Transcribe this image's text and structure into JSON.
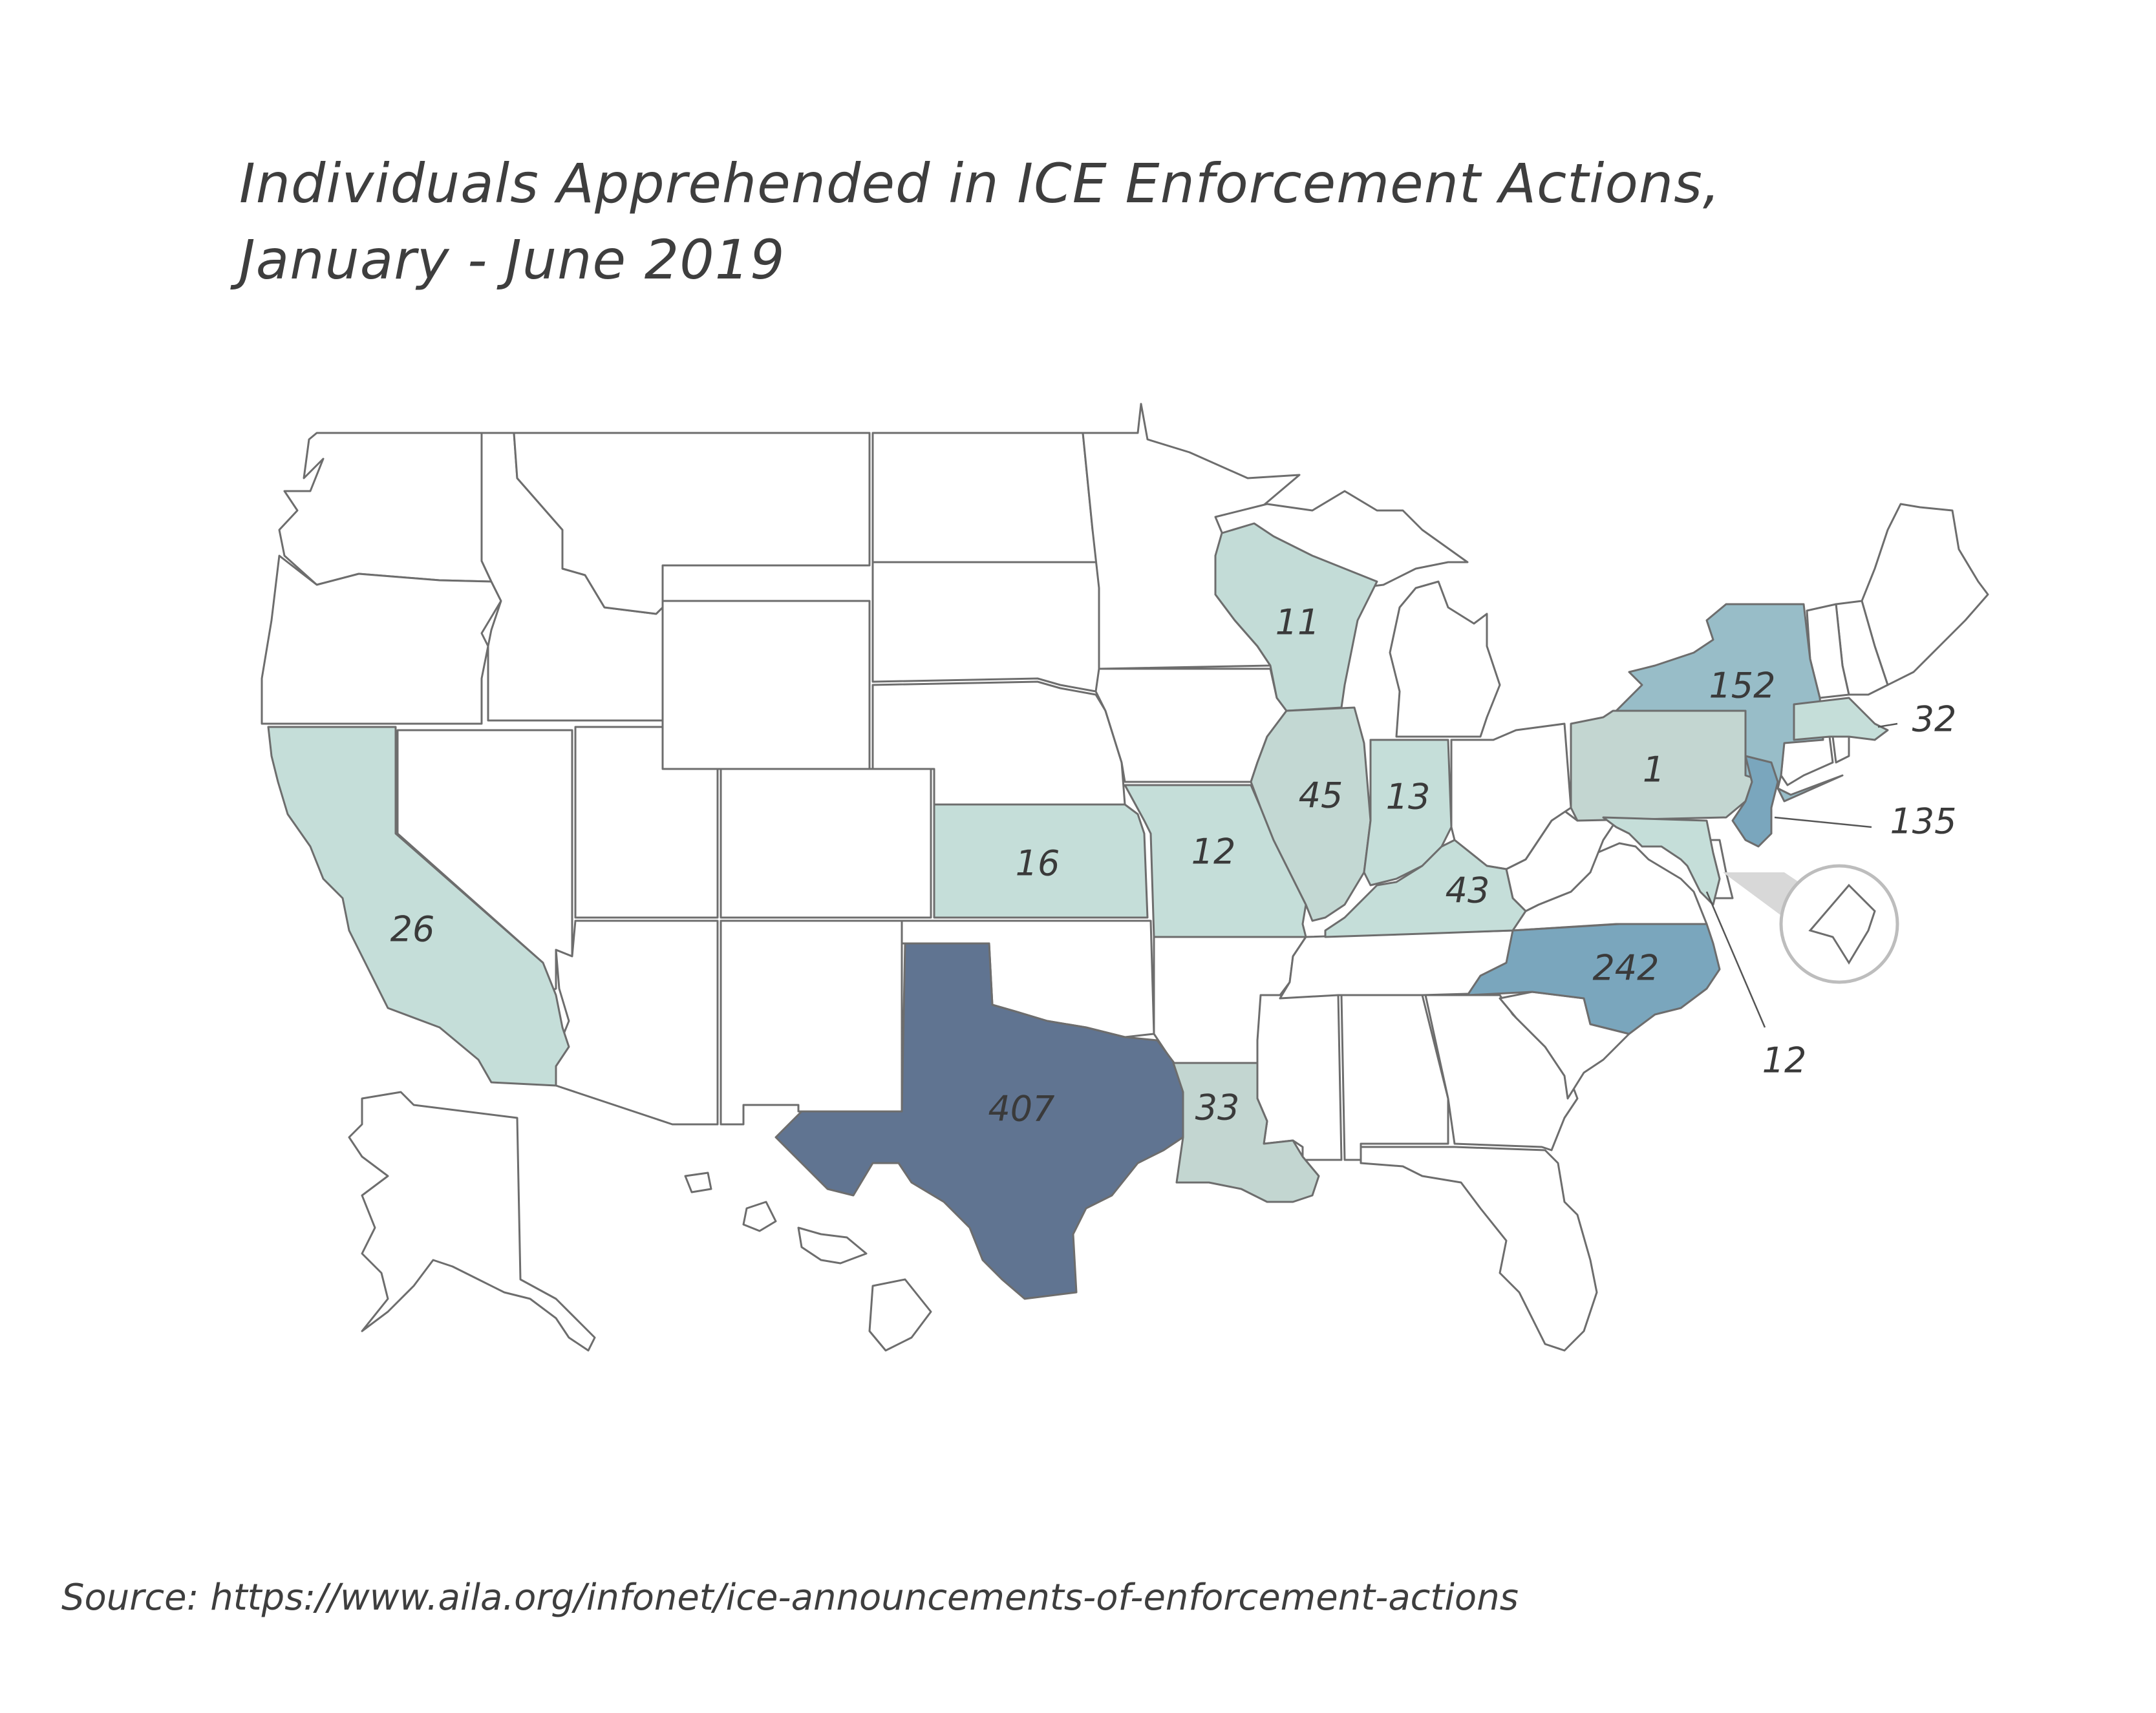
{
  "title": {
    "line1": "Individuals Apprehended in ICE Enforcement Actions,",
    "line2": "January - June 2019"
  },
  "source": "Source: https://www.aila.org/infonet/ice-announcements-of-enforcement-actions",
  "colors": {
    "no_data": "#ffffff",
    "light": "#c5ded9",
    "pale_gray_green": "#c3d6d1",
    "medium": "#98bdc8",
    "medium_dark": "#7aa6bd",
    "dark": "#607491",
    "outline": "#6d6d6d"
  },
  "map_data": {
    "type": "choropleth",
    "region": "United States",
    "values": [
      {
        "state": "Texas",
        "value": "407"
      },
      {
        "state": "North Carolina",
        "value": "242"
      },
      {
        "state": "New York",
        "value": "152"
      },
      {
        "state": "New Jersey",
        "value": "135"
      },
      {
        "state": "Illinois",
        "value": "45"
      },
      {
        "state": "Kentucky",
        "value": "43"
      },
      {
        "state": "Louisiana",
        "value": "33"
      },
      {
        "state": "Massachusetts",
        "value": "32"
      },
      {
        "state": "California",
        "value": "26"
      },
      {
        "state": "Kansas",
        "value": "16"
      },
      {
        "state": "Indiana",
        "value": "13"
      },
      {
        "state": "Missouri",
        "value": "12"
      },
      {
        "state": "Maryland",
        "value": "12"
      },
      {
        "state": "Wisconsin",
        "value": "11"
      },
      {
        "state": "Pennsylvania",
        "value": "1"
      }
    ],
    "inset": "District of Columbia"
  }
}
